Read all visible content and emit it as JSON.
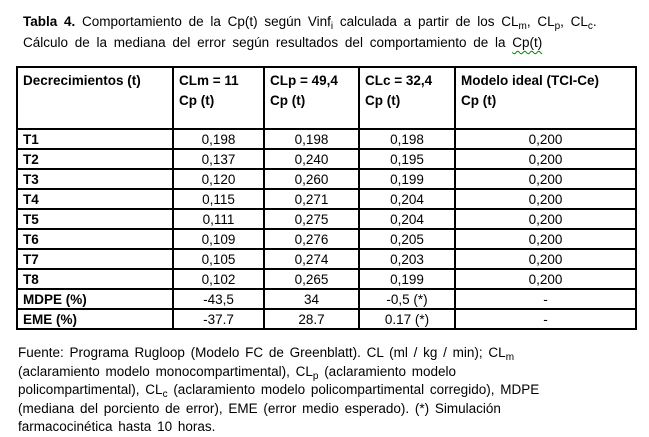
{
  "colors": {
    "text": "#000000",
    "table_border": "#000000",
    "background": "#ffffff",
    "spellcheck_underline": "#008000"
  },
  "title": {
    "lines": [
      {
        "segments": [
          {
            "t": "Tabla 4.",
            "b": true
          },
          {
            "t": " Comportamiento de la Cp(t) según Vinf"
          },
          {
            "t": "i",
            "sub": true
          },
          {
            "t": " calculada a partir de los CL"
          },
          {
            "t": "m",
            "sub": true
          },
          {
            "t": ", CL"
          },
          {
            "t": "p",
            "sub": true
          },
          {
            "t": ", CL"
          },
          {
            "t": "c",
            "sub": true
          },
          {
            "t": "."
          }
        ]
      },
      {
        "segments": [
          {
            "t": "Cálculo de la mediana del error según resultados del comportamiento de la "
          },
          {
            "t": "Cp(t)",
            "wavy": true
          }
        ]
      }
    ]
  },
  "table": {
    "headers": [
      {
        "line1": "Decrecimientos (t)",
        "line2": ""
      },
      {
        "line1": "CLm = 11",
        "line2": "Cp (t)"
      },
      {
        "line1": "CLp = 49,4",
        "line2": "Cp (t)"
      },
      {
        "line1": "CLc = 32,4",
        "line2": "Cp (t)"
      },
      {
        "line1": "Modelo ideal (TCI-Ce)",
        "line2": "Cp (t)"
      }
    ],
    "rows": [
      {
        "label": "T1",
        "values": [
          "0,198",
          "0,198",
          "0,198",
          "0,200"
        ]
      },
      {
        "label": "T2",
        "values": [
          "0,137",
          "0,240",
          "0,195",
          "0,200"
        ]
      },
      {
        "label": "T3",
        "values": [
          "0,120",
          "0,260",
          "0,199",
          "0,200"
        ]
      },
      {
        "label": "T4",
        "values": [
          "0,115",
          "0,271",
          "0,204",
          "0,200"
        ]
      },
      {
        "label": "T5",
        "values": [
          "0,111",
          "0,275",
          "0,204",
          "0,200"
        ]
      },
      {
        "label": "T6",
        "values": [
          "0,109",
          "0,276",
          "0,205",
          "0,200"
        ]
      },
      {
        "label": "T7",
        "values": [
          "0,105",
          "0,274",
          "0,203",
          "0,200"
        ]
      },
      {
        "label": "T8",
        "values": [
          "0,102",
          "0,265",
          "0,199",
          "0,200"
        ]
      },
      {
        "label": "MDPE (%)",
        "values": [
          "-43,5",
          "34",
          "-0,5 (*)",
          "-"
        ]
      },
      {
        "label": "EME (%)",
        "values": [
          "-37.7",
          "28.7",
          "0.17 (*)",
          "-"
        ]
      }
    ]
  },
  "footer": {
    "lines": [
      {
        "segments": [
          {
            "t": "Fuente: Programa Rugloop (Modelo FC de Greenblatt). CL (ml / kg / min); CL"
          },
          {
            "t": "m",
            "sub": true
          }
        ]
      },
      {
        "segments": [
          {
            "t": "(aclaramiento modelo monocompartimental), CL"
          },
          {
            "t": "p",
            "sub": true
          },
          {
            "t": " (aclaramiento modelo"
          }
        ]
      },
      {
        "segments": [
          {
            "t": "policompartimental), CL"
          },
          {
            "t": "c",
            "sub": true
          },
          {
            "t": " (aclaramiento modelo policompartimental corregido), MDPE"
          }
        ]
      },
      {
        "segments": [
          {
            "t": "(mediana del porciento de error), EME (error medio esperado). (*) Simulación"
          }
        ]
      },
      {
        "segments": [
          {
            "t": "farmacocinética hasta 10 horas."
          }
        ]
      }
    ]
  }
}
